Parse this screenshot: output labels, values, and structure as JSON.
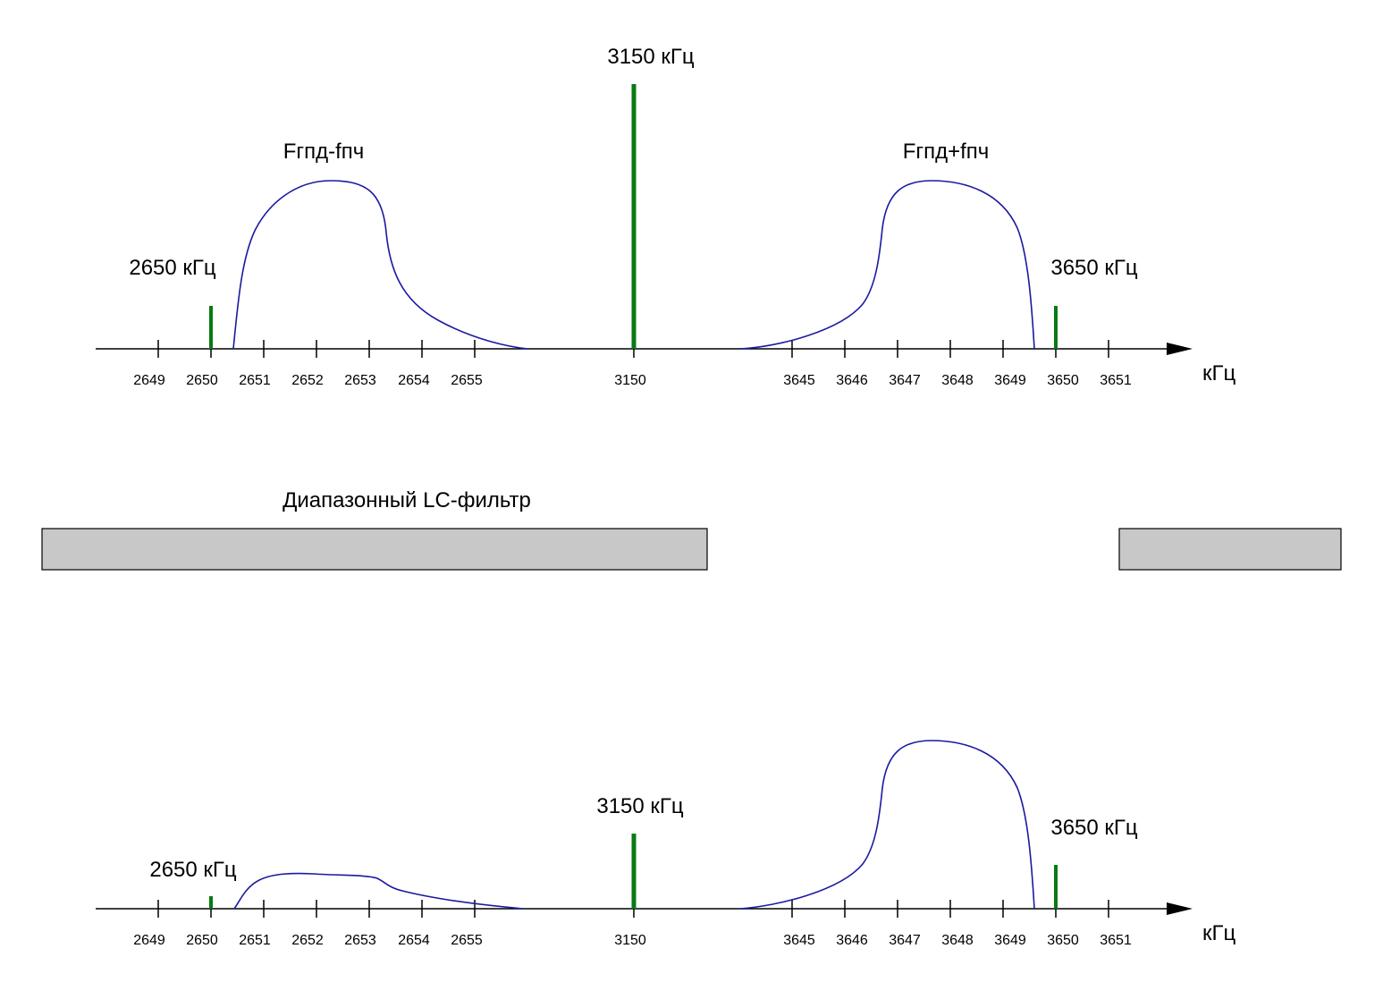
{
  "colors": {
    "axis": "#000000",
    "carrier": "#0a7a14",
    "curve": "#1a1aa0",
    "filter_fill": "#c8c8c8",
    "filter_stroke": "#000000"
  },
  "top_panel": {
    "tick_labels_left": [
      "2649",
      "2650",
      "2651",
      "2652",
      "2653",
      "2654",
      "2655"
    ],
    "tick_label_center": "3150",
    "tick_labels_right": [
      "3645",
      "3646",
      "3647",
      "3648",
      "3649",
      "3650",
      "3651"
    ],
    "unit": "кГц",
    "carrier_left_label": "2650 кГц",
    "carrier_center_label": "3150 кГц",
    "carrier_right_label": "3650 кГц",
    "lower_sideband_label": "Fгпд-fпч",
    "upper_sideband_label": "Fгпд+fпч"
  },
  "filter": {
    "title": "Диапазонный LC-фильтр"
  },
  "bottom_panel": {
    "tick_labels_left": [
      "2649",
      "2650",
      "2651",
      "2652",
      "2653",
      "2654",
      "2655"
    ],
    "tick_label_center": "3150",
    "tick_labels_right": [
      "3645",
      "3646",
      "3647",
      "3648",
      "3649",
      "3650",
      "3651"
    ],
    "unit": "кГц",
    "carrier_left_label": "2650 кГц",
    "carrier_center_label": "3150 кГц",
    "carrier_right_label": "3650 кГц"
  }
}
